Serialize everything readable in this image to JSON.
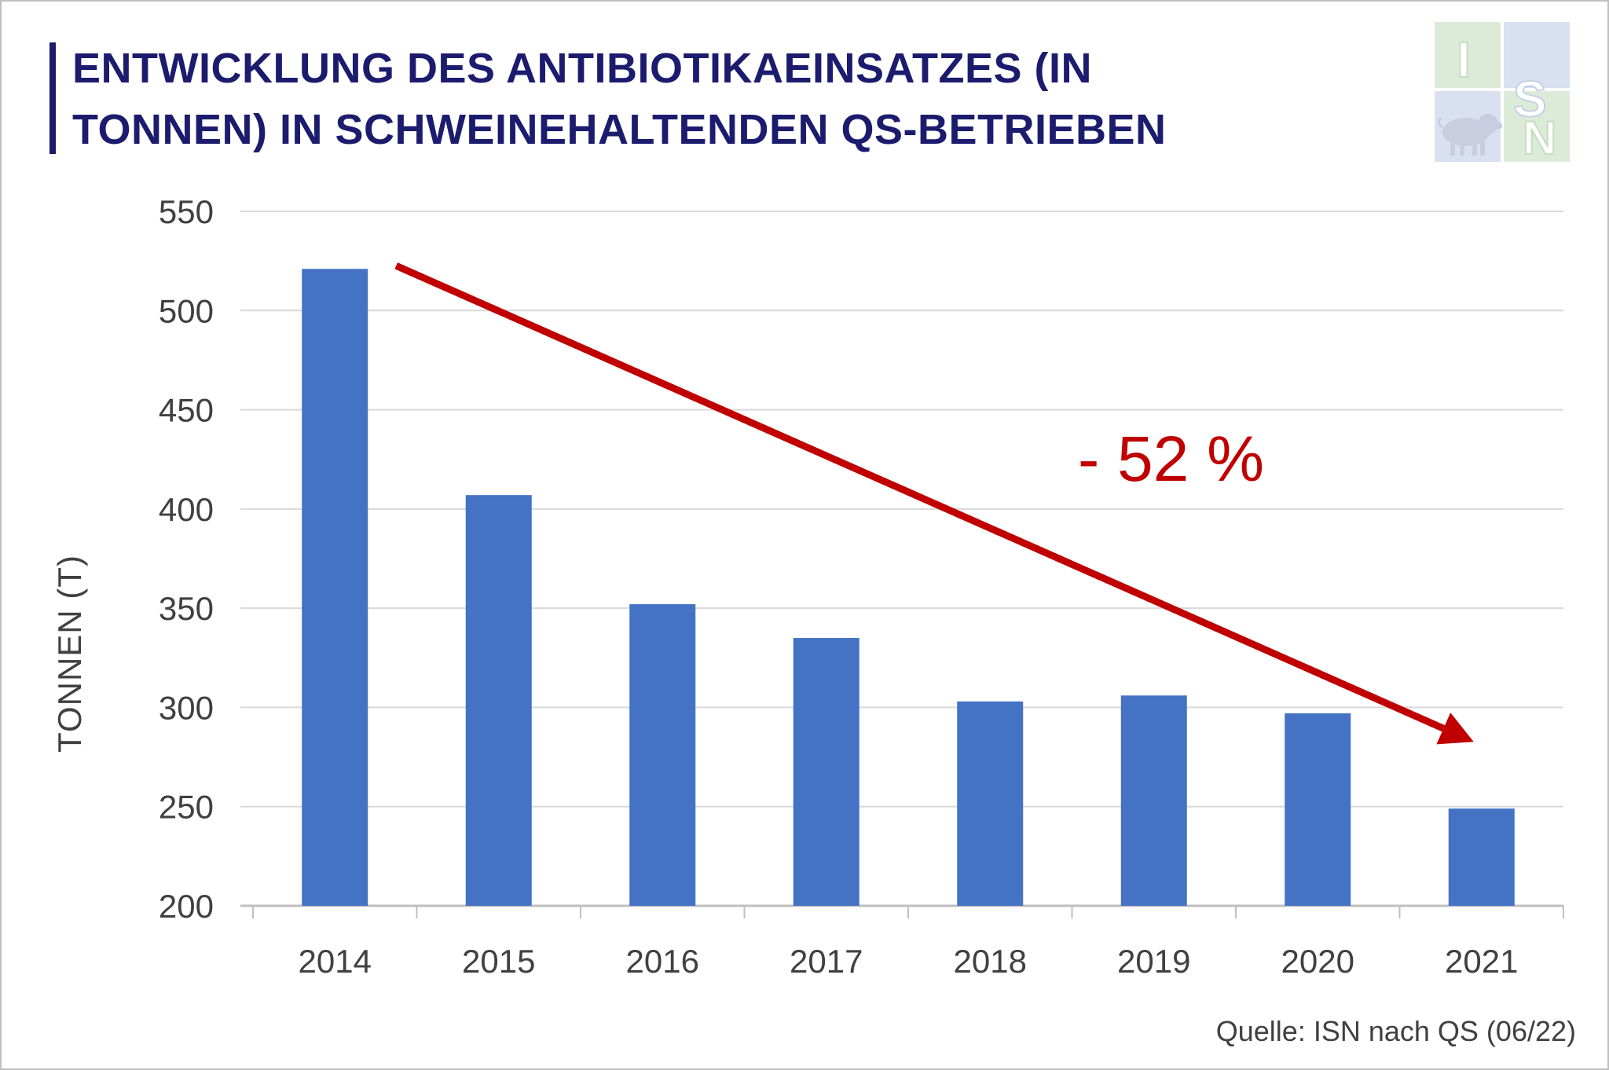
{
  "title": "ENTWICKLUNG DES ANTIBIOTIKAEINSATZES (IN TONNEN) IN SCHWEINEHALTENDEN QS-BETRIEBEN",
  "logo": {
    "letters": [
      "I",
      "S",
      "N"
    ],
    "icon": "pig-icon"
  },
  "source": "Quelle: ISN nach QS (06/22)",
  "colors": {
    "bar": "#4472c4",
    "trend": "#c00000",
    "title": "#1c1c6e",
    "grid": "#d9d9d9"
  },
  "chart_data": {
    "type": "bar",
    "categories": [
      "2014",
      "2015",
      "2016",
      "2017",
      "2018",
      "2019",
      "2020",
      "2021"
    ],
    "values": [
      521,
      407,
      352,
      335,
      303,
      306,
      297,
      249
    ],
    "ylabel": "TONNEN (T)",
    "xlabel": "",
    "ylim": [
      200,
      550
    ],
    "yticks": [
      200,
      250,
      300,
      350,
      400,
      450,
      500,
      550
    ],
    "grid": true,
    "annotation": {
      "text": "- 52 %",
      "trend_from": "2014",
      "trend_to": "2021"
    }
  }
}
